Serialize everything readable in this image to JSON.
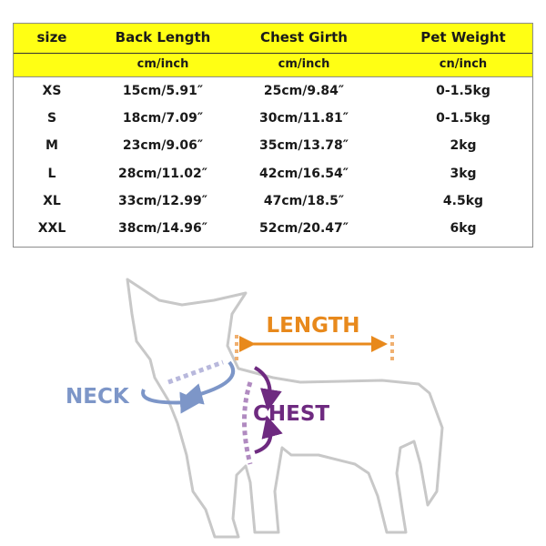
{
  "size_chart": {
    "headers": [
      "size",
      "Back  Length",
      "Chest  Girth",
      "Pet Weight"
    ],
    "units": [
      "",
      "cm/inch",
      "cm/inch",
      "cn/inch"
    ],
    "rows": [
      [
        "XS",
        "15cm/5.91″",
        "25cm/9.84″",
        "0-1.5kg"
      ],
      [
        "S",
        "18cm/7.09″",
        "30cm/11.81″",
        "0-1.5kg"
      ],
      [
        "M",
        "23cm/9.06″",
        "35cm/13.78″",
        "2kg"
      ],
      [
        "L",
        "28cm/11.02″",
        "42cm/16.54″",
        "3kg"
      ],
      [
        "XL",
        "33cm/12.99″",
        "47cm/18.5″",
        "4.5kg"
      ],
      [
        "XXL",
        "38cm/14.96″",
        "52cm/20.47″",
        "6kg"
      ]
    ],
    "header_color": "#ffff14"
  },
  "diagram": {
    "length_label": "LENGTH",
    "neck_label": "NECK",
    "chest_label": "CHEST",
    "colors": {
      "length": "#e8891c",
      "neck": "#7d96c8",
      "chest": "#6e2a80",
      "outline": "#c8c8c8"
    }
  }
}
